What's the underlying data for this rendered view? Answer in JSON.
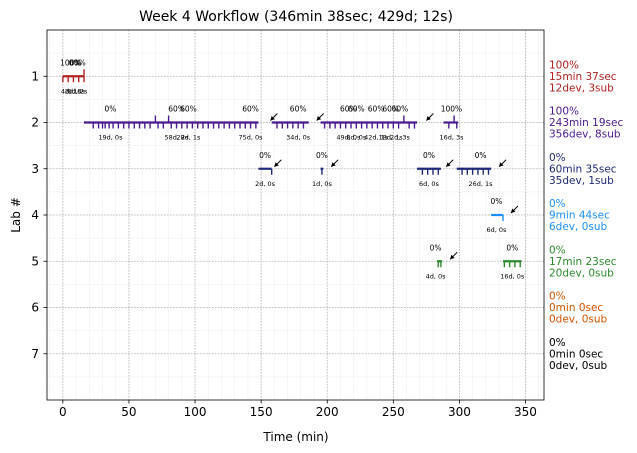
{
  "chart_data": {
    "type": "timeline",
    "title": "Week 4 Workflow (346min 38sec; 429d; 12s)",
    "xlabel": "Time (min)",
    "ylabel": "Lab #",
    "xlim": [
      -12,
      364
    ],
    "ylim": [
      8,
      0
    ],
    "xticks": [
      0,
      50,
      100,
      150,
      200,
      250,
      300,
      350
    ],
    "yticks": [
      1,
      2,
      3,
      4,
      5,
      6,
      7
    ],
    "grid": true,
    "labs": [
      {
        "lab": 1,
        "color": "#b22222",
        "summary": [
          "100%",
          "15min 37sec",
          "12dev, 3sub"
        ],
        "segments": [
          [
            0,
            16
          ]
        ],
        "spikes": [
          [
            0,
            "down"
          ],
          [
            4,
            "down"
          ],
          [
            8,
            "down"
          ],
          [
            12,
            "down"
          ],
          [
            16,
            "up"
          ],
          [
            16,
            "down"
          ]
        ],
        "annotations": [
          {
            "x": 6,
            "pct": "100%",
            "info": "4d, 1s"
          },
          {
            "x": 9,
            "pct": "0%",
            "info": "2d, 0s"
          },
          {
            "x": 11,
            "pct": "60%",
            "info": "6d, 2s"
          }
        ]
      },
      {
        "lab": 2,
        "color": "#4b1a8f",
        "summary": [
          "100%",
          "243min 19sec",
          "356dev, 8sub"
        ],
        "segments": [
          [
            16,
            148
          ],
          [
            158,
            186
          ],
          [
            195,
            268
          ],
          [
            288,
            299
          ]
        ],
        "spikes": [
          [
            23,
            "down"
          ],
          [
            27,
            "down"
          ],
          [
            30,
            "down"
          ],
          [
            32,
            "down"
          ],
          [
            35,
            "down"
          ],
          [
            38,
            "down"
          ],
          [
            42,
            "down"
          ],
          [
            46,
            "down"
          ],
          [
            50,
            "down"
          ],
          [
            54,
            "down"
          ],
          [
            58,
            "down"
          ],
          [
            62,
            "down"
          ],
          [
            66,
            "down"
          ],
          [
            70,
            "up"
          ],
          [
            72,
            "down"
          ],
          [
            76,
            "down"
          ],
          [
            80,
            "up"
          ],
          [
            82,
            "down"
          ],
          [
            86,
            "down"
          ],
          [
            90,
            "down"
          ],
          [
            94,
            "down"
          ],
          [
            98,
            "down"
          ],
          [
            102,
            "down"
          ],
          [
            106,
            "down"
          ],
          [
            110,
            "down"
          ],
          [
            114,
            "down"
          ],
          [
            118,
            "down"
          ],
          [
            122,
            "down"
          ],
          [
            126,
            "down"
          ],
          [
            130,
            "down"
          ],
          [
            134,
            "down"
          ],
          [
            138,
            "down"
          ],
          [
            142,
            "down"
          ],
          [
            146,
            "down"
          ],
          [
            162,
            "down"
          ],
          [
            166,
            "down"
          ],
          [
            170,
            "down"
          ],
          [
            174,
            "down"
          ],
          [
            178,
            "down"
          ],
          [
            182,
            "down"
          ],
          [
            198,
            "down"
          ],
          [
            202,
            "down"
          ],
          [
            206,
            "down"
          ],
          [
            210,
            "down"
          ],
          [
            214,
            "down"
          ],
          [
            218,
            "down"
          ],
          [
            222,
            "down"
          ],
          [
            226,
            "down"
          ],
          [
            230,
            "down"
          ],
          [
            234,
            "down"
          ],
          [
            238,
            "down"
          ],
          [
            242,
            "down"
          ],
          [
            246,
            "down"
          ],
          [
            250,
            "down"
          ],
          [
            254,
            "down"
          ],
          [
            258,
            "up"
          ],
          [
            262,
            "down"
          ],
          [
            266,
            "down"
          ],
          [
            292,
            "down"
          ],
          [
            296,
            "up"
          ],
          [
            298,
            "down"
          ]
        ],
        "annotations": [
          {
            "x": 36,
            "pct": "0%",
            "info": "19d, 0s"
          },
          {
            "x": 86,
            "pct": "60%",
            "info": "58d, 2s"
          },
          {
            "x": 95,
            "pct": "60%",
            "info": "28d, 1s"
          },
          {
            "x": 142,
            "pct": "60%",
            "info": "75d, 0s"
          },
          {
            "x": 178,
            "pct": "60%",
            "info": "34d, 0s"
          },
          {
            "x": 216,
            "pct": "60%",
            "info": "49d, 0s"
          },
          {
            "x": 222,
            "pct": "60%",
            "info": "8d, 0s"
          },
          {
            "x": 237,
            "pct": "60%",
            "info": "42d, 1s"
          },
          {
            "x": 248,
            "pct": "60%",
            "info": "18d, 1s"
          },
          {
            "x": 255,
            "pct": "60%",
            "info": "2d, 3s"
          },
          {
            "x": 294,
            "pct": "100%",
            "info": "16d, 3s"
          }
        ],
        "arrows": [
          157,
          192,
          275
        ]
      },
      {
        "lab": 3,
        "color": "#1f2a7a",
        "summary": [
          "0%",
          "60min 35sec",
          "35dev, 1sub"
        ],
        "segments": [
          [
            148,
            158
          ],
          [
            195,
            197
          ],
          [
            268,
            286
          ],
          [
            298,
            324
          ]
        ],
        "spikes": [
          [
            158,
            "down"
          ],
          [
            196,
            "down"
          ],
          [
            272,
            "down"
          ],
          [
            276,
            "down"
          ],
          [
            280,
            "down"
          ],
          [
            284,
            "down"
          ],
          [
            302,
            "down"
          ],
          [
            306,
            "down"
          ],
          [
            310,
            "down"
          ],
          [
            314,
            "down"
          ],
          [
            318,
            "down"
          ],
          [
            322,
            "down"
          ]
        ],
        "annotations": [
          {
            "x": 153,
            "pct": "0%",
            "info": "2d, 0s"
          },
          {
            "x": 196,
            "pct": "0%",
            "info": "1d, 0s"
          },
          {
            "x": 277,
            "pct": "0%",
            "info": "6d, 0s"
          },
          {
            "x": 316,
            "pct": "0%",
            "info": "26d, 1s"
          }
        ],
        "arrows": [
          160,
          203,
          290,
          330
        ]
      },
      {
        "lab": 4,
        "color": "#1e90ff",
        "summary": [
          "0%",
          "9min 44sec",
          "6dev, 0sub"
        ],
        "segments": [
          [
            324,
            333
          ]
        ],
        "spikes": [
          [
            333,
            "down"
          ]
        ],
        "annotations": [
          {
            "x": 328,
            "pct": "0%",
            "info": "6d, 0s"
          }
        ],
        "arrows": [
          339
        ]
      },
      {
        "lab": 5,
        "color": "#2e8b2e",
        "summary": [
          "0%",
          "17min 23sec",
          "20dev, 0sub"
        ],
        "segments": [
          [
            283,
            287
          ],
          [
            333,
            347
          ]
        ],
        "spikes": [
          [
            284,
            "down"
          ],
          [
            286,
            "down"
          ],
          [
            334,
            "down"
          ],
          [
            338,
            "down"
          ],
          [
            342,
            "down"
          ],
          [
            346,
            "down"
          ]
        ],
        "annotations": [
          {
            "x": 282,
            "pct": "0%",
            "info": "4d, 0s"
          },
          {
            "x": 340,
            "pct": "0%",
            "info": "16d, 0s"
          }
        ],
        "arrows": [
          293
        ]
      },
      {
        "lab": 6,
        "color": "#d35400",
        "summary": [
          "0%",
          "0min 0sec",
          "0dev, 0sub"
        ],
        "segments": [],
        "spikes": [],
        "annotations": []
      },
      {
        "lab": 7,
        "color": "#000000",
        "summary": [
          "0%",
          "0min 0sec",
          "0dev, 0sub"
        ],
        "segments": [],
        "spikes": [],
        "annotations": []
      }
    ]
  }
}
